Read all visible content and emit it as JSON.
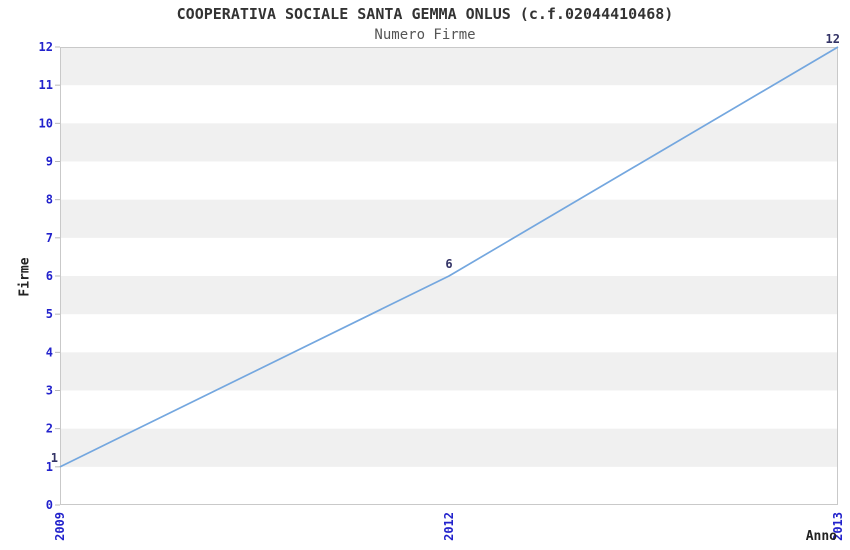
{
  "chart_data": {
    "type": "line",
    "title": "COOPERATIVA SOCIALE SANTA GEMMA ONLUS (c.f.02044410468)",
    "subtitle": "Numero Firme",
    "xlabel": "Anno",
    "ylabel": "Firme",
    "x": [
      "2009",
      "2012",
      "2013"
    ],
    "series": [
      {
        "name": "Numero Firme",
        "values": [
          1,
          6,
          12
        ]
      }
    ],
    "point_labels": [
      "1",
      "6",
      "12"
    ],
    "ylim": [
      0,
      12
    ],
    "ytick_step": 1,
    "x_spacing": "categorical-even",
    "grid": "alternating-horizontal-bands",
    "legend": "none",
    "markers": "none",
    "colors": {
      "line": "#74a7df",
      "band": "#f0f0f0",
      "plot_border": "#c9c9c9",
      "tick_mark": "#b8b8b8",
      "tick_label": "#2222cc",
      "axis_title": "#222222",
      "title": "#333333",
      "subtitle": "#555555",
      "data_label": "#333366",
      "background": "#ffffff"
    }
  }
}
